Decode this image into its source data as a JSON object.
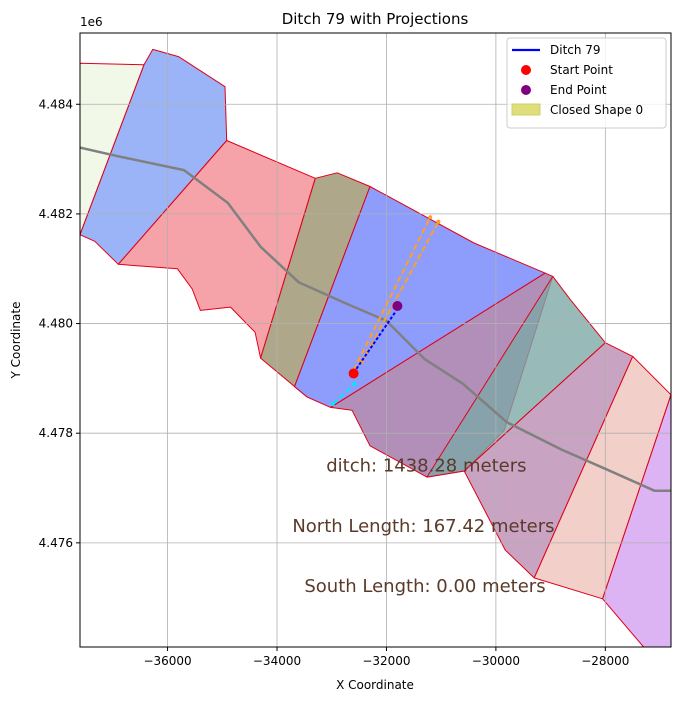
{
  "chart_data": {
    "type": "line",
    "title": "Ditch 79 with Projections",
    "xlabel": "X Coordinate",
    "ylabel": "Y Coordinate",
    "y_offset_label": "1e6",
    "xlim": [
      -37600,
      -26800
    ],
    "ylim": [
      4474100,
      4485300
    ],
    "x_ticks": [
      -36000,
      -34000,
      -32000,
      -30000,
      -28000
    ],
    "x_tick_labels": [
      "−36000",
      "−34000",
      "−32000",
      "−30000",
      "−28000"
    ],
    "y_ticks": [
      4476000,
      4478000,
      4480000,
      4482000,
      4484000
    ],
    "y_tick_labels": [
      "4.476",
      "4.478",
      "4.480",
      "4.482",
      "4.484"
    ],
    "grid": true,
    "legend_position": "top-right",
    "legend": [
      {
        "label": "Ditch 79",
        "kind": "line",
        "color": "#0000ff"
      },
      {
        "label": "Start Point",
        "kind": "marker",
        "color": "#ff0000"
      },
      {
        "label": "End Point",
        "kind": "marker",
        "color": "#800080"
      },
      {
        "label": "Closed Shape 0",
        "kind": "patch",
        "color": "#dede7a"
      }
    ],
    "polygons": [
      {
        "color": "#eef6e2",
        "points": [
          [
            -37600,
            4484750
          ],
          [
            -36430,
            4484720
          ],
          [
            -37600,
            4481620
          ]
        ]
      },
      {
        "color": "#7f9ff5",
        "points": [
          [
            -36430,
            4484720
          ],
          [
            -36270,
            4485000
          ],
          [
            -35800,
            4484870
          ],
          [
            -34950,
            4484320
          ],
          [
            -34920,
            4483340
          ],
          [
            -36900,
            4481080
          ],
          [
            -37330,
            4481500
          ],
          [
            -37600,
            4481620
          ]
        ]
      },
      {
        "color": "#f2898f",
        "points": [
          [
            -36900,
            4481080
          ],
          [
            -34920,
            4483340
          ],
          [
            -33300,
            4482650
          ],
          [
            -34300,
            4479370
          ],
          [
            -34400,
            4479840
          ],
          [
            -34850,
            4480300
          ],
          [
            -35400,
            4480240
          ],
          [
            -35550,
            4480630
          ],
          [
            -35820,
            4481000
          ]
        ]
      },
      {
        "color": "#998e69",
        "points": [
          [
            -33300,
            4482650
          ],
          [
            -32900,
            4482750
          ],
          [
            -32300,
            4482500
          ],
          [
            -33680,
            4478850
          ],
          [
            -33450,
            4478660
          ],
          [
            -34300,
            4479370
          ]
        ]
      },
      {
        "color": "#6e82fa",
        "points": [
          [
            -32300,
            4482500
          ],
          [
            -30400,
            4481470
          ],
          [
            -29100,
            4480920
          ],
          [
            -33020,
            4478470
          ],
          [
            -33450,
            4478660
          ],
          [
            -33680,
            4478850
          ]
        ]
      },
      {
        "color": "#9b6fa4",
        "points": [
          [
            -29100,
            4480920
          ],
          [
            -28960,
            4480860
          ],
          [
            -29850,
            4478050
          ],
          [
            -30580,
            4477310
          ],
          [
            -31260,
            4477200
          ],
          [
            -32300,
            4477770
          ],
          [
            -32630,
            4478420
          ],
          [
            -33020,
            4478470
          ]
        ]
      },
      {
        "color": "#7ba8a6",
        "points": [
          [
            -28960,
            4480860
          ],
          [
            -28650,
            4480450
          ],
          [
            -28000,
            4479650
          ],
          [
            -30580,
            4477310
          ],
          [
            -31260,
            4477200
          ]
        ]
      },
      {
        "color": "#b989b1",
        "points": [
          [
            -28000,
            4479650
          ],
          [
            -27500,
            4479400
          ],
          [
            -29300,
            4475360
          ],
          [
            -29830,
            4475870
          ],
          [
            -30580,
            4477310
          ]
        ]
      },
      {
        "color": "#eec3ba",
        "points": [
          [
            -27500,
            4479400
          ],
          [
            -26800,
            4478700
          ],
          [
            -28050,
            4474980
          ],
          [
            -29300,
            4475360
          ]
        ]
      },
      {
        "color": "#d29ef0",
        "points": [
          [
            -26800,
            4478700
          ],
          [
            -26800,
            4478200
          ],
          [
            -26800,
            4474000
          ],
          [
            -27300,
            4474100
          ],
          [
            -28050,
            4474980
          ]
        ]
      }
    ],
    "centerline": [
      [
        -37600,
        4483210
      ],
      [
        -36900,
        4483050
      ],
      [
        -35700,
        4482800
      ],
      [
        -34900,
        4482200
      ],
      [
        -34300,
        4481400
      ],
      [
        -33600,
        4480750
      ],
      [
        -32700,
        4480350
      ],
      [
        -32000,
        4480050
      ],
      [
        -31300,
        4479350
      ],
      [
        -30600,
        4478900
      ],
      [
        -29800,
        4478200
      ],
      [
        -28800,
        4477700
      ],
      [
        -28000,
        4477350
      ],
      [
        -27100,
        4476950
      ],
      [
        -26800,
        4476950
      ]
    ],
    "projections": [
      {
        "color": "#ffa020",
        "points": [
          [
            -32600,
            4479150
          ],
          [
            -31200,
            4481940
          ]
        ]
      },
      {
        "color": "#ffa020",
        "points": [
          [
            -32450,
            4479300
          ],
          [
            -31050,
            4481860
          ]
        ]
      },
      {
        "color": "#00e8ff",
        "points": [
          [
            -32980,
            4478530
          ],
          [
            -32580,
            4478900
          ]
        ]
      }
    ],
    "ditch": {
      "name": "Ditch 79",
      "points": [
        [
          -32600,
          4479100
        ],
        [
          -31830,
          4480220
        ]
      ]
    },
    "start_point": {
      "name": "Start Point",
      "x": -32600,
      "y": 4479090
    },
    "end_point": {
      "name": "End Point",
      "x": -31800,
      "y": 4480320
    },
    "annotations": [
      {
        "text": "ditch: 1438.28 meters",
        "x": -33100,
        "y": 4477300
      },
      {
        "text": "North Length: 167.42 meters",
        "x": -33720,
        "y": 4476200
      },
      {
        "text": "South Length: 0.00 meters",
        "x": -33500,
        "y": 4475100
      }
    ]
  }
}
